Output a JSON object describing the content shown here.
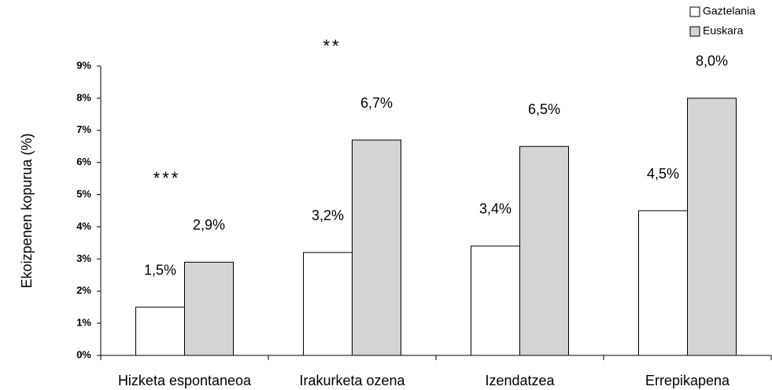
{
  "chart_data": {
    "type": "bar",
    "y_label": "Ekoizpenen kopurua (%)",
    "categories": [
      "Hizketa espontaneoa",
      "Irakurketa ozena",
      "Izendatzea",
      "Errepikapena"
    ],
    "series": [
      {
        "name": "Gaztelania",
        "color": "#ffffff",
        "values": [
          1.5,
          3.2,
          3.4,
          4.5
        ],
        "value_labels": [
          "1,5%",
          "3,2%",
          "3,4%",
          "4,5%"
        ]
      },
      {
        "name": "Euskara",
        "color": "#d4d4d4",
        "values": [
          2.9,
          6.7,
          6.5,
          8.0
        ],
        "value_labels": [
          "2,9%",
          "6,7%",
          "6,5%",
          "8,0%"
        ]
      }
    ],
    "ylim": [
      0,
      9
    ],
    "yticks": [
      {
        "value": 0,
        "label": "0%"
      },
      {
        "value": 1,
        "label": "1%"
      },
      {
        "value": 2,
        "label": "2%"
      },
      {
        "value": 3,
        "label": "3%"
      },
      {
        "value": 4,
        "label": "4%"
      },
      {
        "value": 5,
        "label": "5%"
      },
      {
        "value": 6,
        "label": "6%"
      },
      {
        "value": 7,
        "label": "7%"
      },
      {
        "value": 8,
        "label": "8%"
      },
      {
        "value": 9,
        "label": "9%"
      }
    ],
    "annotations": [
      "***",
      "**"
    ],
    "legend": "top-right"
  }
}
